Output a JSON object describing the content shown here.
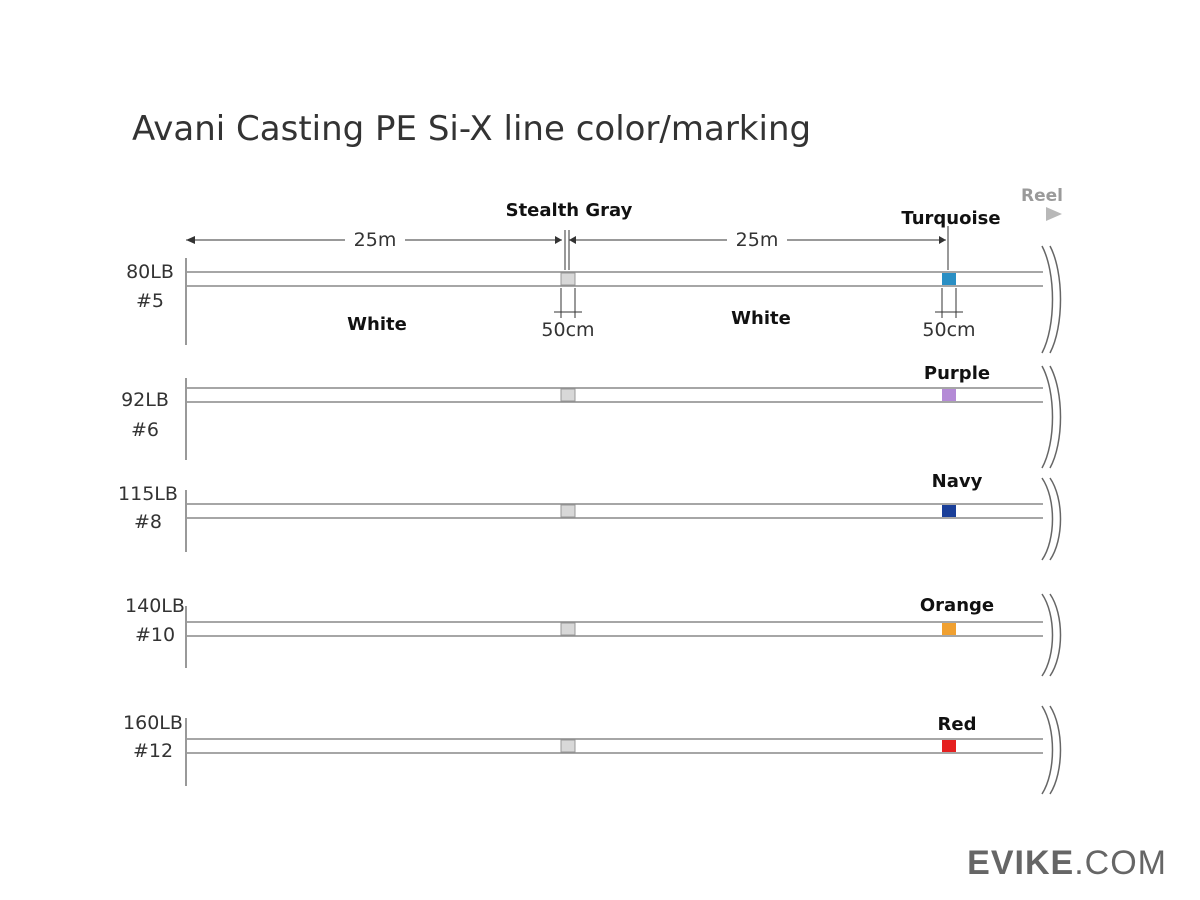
{
  "title": "Avani Casting PE Si-X line color/marking",
  "reel_label": "Reel",
  "top_dimensions": {
    "length_left": "25m",
    "length_right": "25m",
    "marker_left_name": "Stealth Gray",
    "marker_right_name": "Turquoise",
    "base_left": "White",
    "base_right": "White",
    "mark_length_left": "50cm",
    "mark_length_right": "50cm"
  },
  "lines": [
    {
      "lb": "80LB",
      "num": "#5",
      "marker_label": "",
      "marker_color": "#2a8fc4"
    },
    {
      "lb": "92LB",
      "num": "#6",
      "marker_label": "Purple",
      "marker_color": "#b48ad6"
    },
    {
      "lb": "115LB",
      "num": "#8",
      "marker_label": "Navy",
      "marker_color": "#1a3f99"
    },
    {
      "lb": "140LB",
      "num": "#10",
      "marker_label": "Orange",
      "marker_color": "#f0a030"
    },
    {
      "lb": "160LB",
      "num": "#12",
      "marker_label": "Red",
      "marker_color": "#e52020"
    }
  ],
  "colors": {
    "gray_marker": "#d8d8d8",
    "line_stroke": "#888888"
  },
  "watermark": {
    "bold_part": "EVIKE",
    "light_part": ".COM"
  }
}
